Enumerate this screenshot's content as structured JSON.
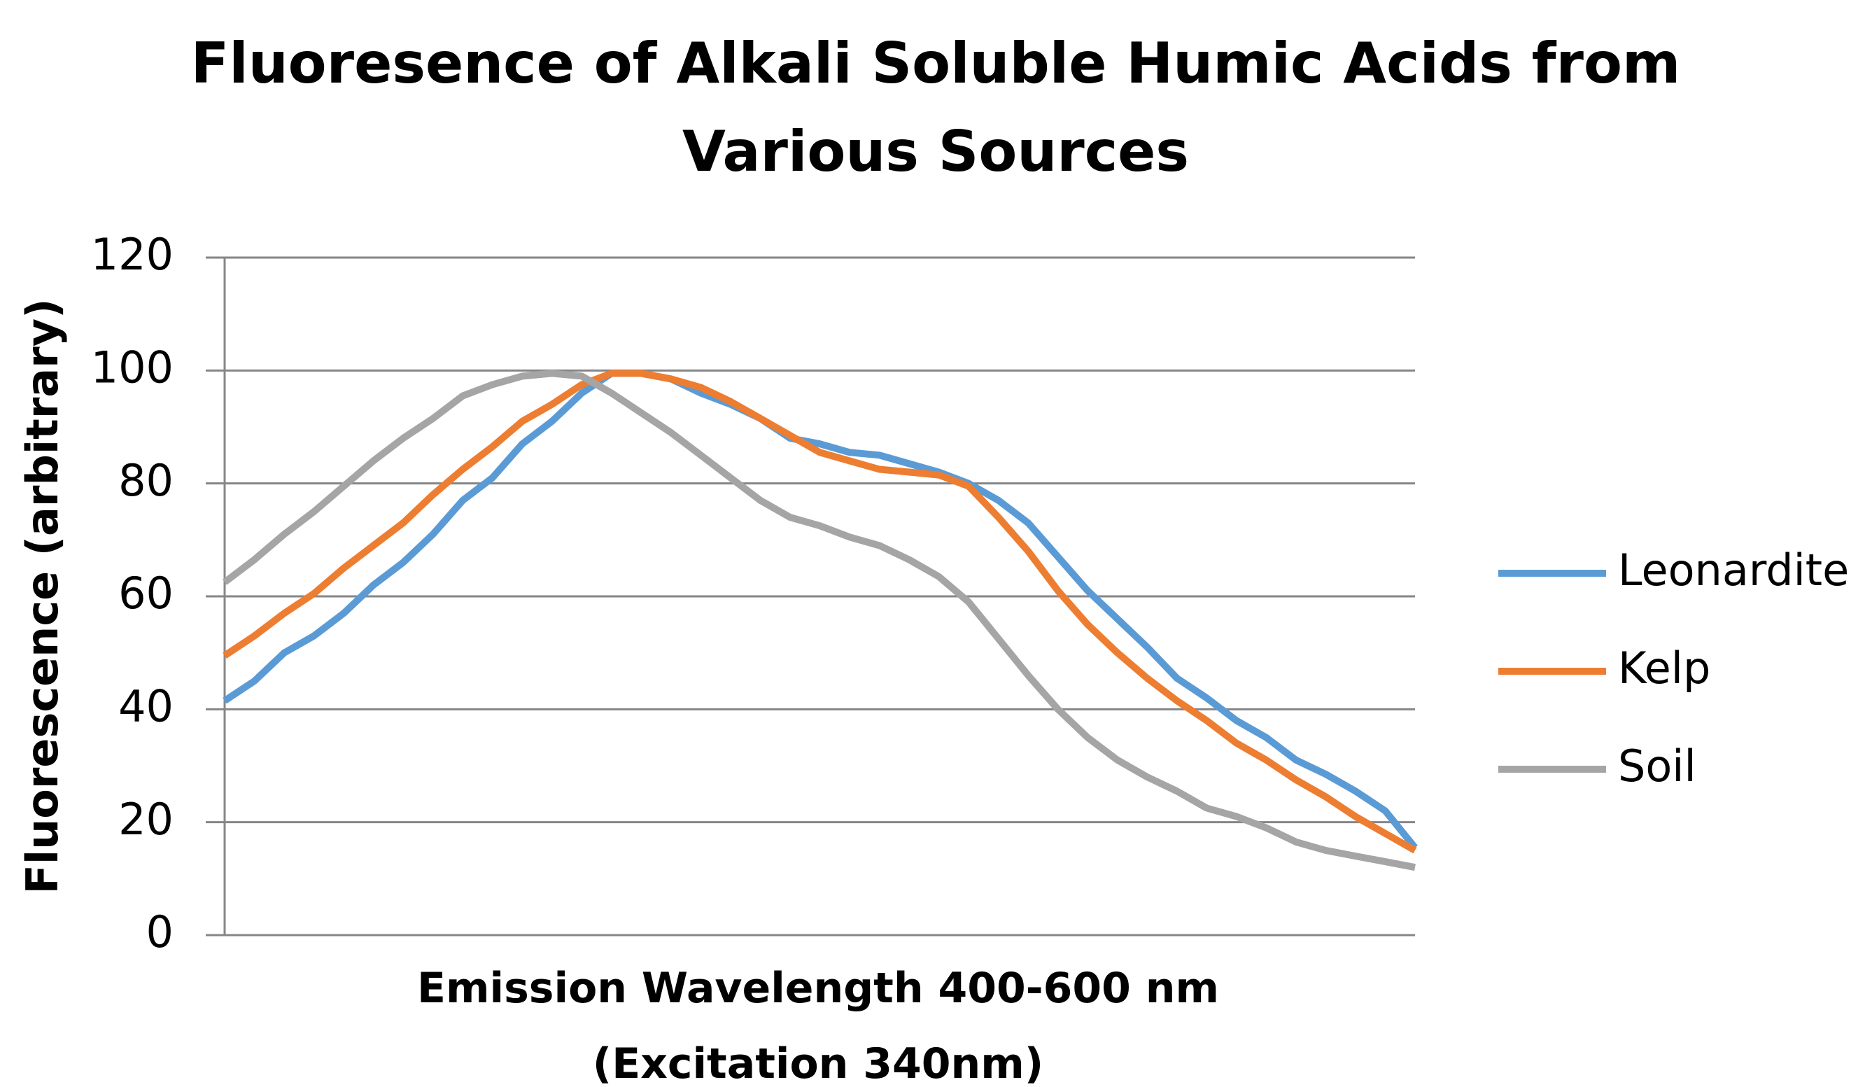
{
  "chart_data": {
    "type": "line",
    "title": "Fluoresence of Alkali Soluble Humic Acids from Various Sources",
    "x_label": "Emission Wavelength 400-600 nm (Excitation 340nm)",
    "y_label": "Fluorescence (arbitrary)",
    "categories": [
      null,
      null,
      null,
      null,
      null,
      null,
      null,
      null,
      null,
      null,
      null,
      null,
      null,
      null,
      null,
      null,
      null,
      null,
      null,
      null,
      null,
      null,
      null,
      null,
      null,
      null,
      null,
      null,
      null,
      null,
      null,
      null,
      null,
      null,
      null,
      null,
      null,
      null,
      null,
      null,
      null
    ],
    "series": [
      {
        "name": "Leonardite",
        "color": "#5b9bd5",
        "values": [
          41.5,
          45,
          50,
          53,
          57,
          62,
          66,
          71,
          77,
          81,
          87,
          91,
          96,
          99.5,
          99.5,
          98.5,
          96,
          94,
          91.5,
          88,
          87,
          85.5,
          85,
          83.5,
          82,
          80,
          77,
          73,
          67,
          61,
          56,
          51,
          45.5,
          42,
          38,
          35,
          31,
          28.5,
          25.5,
          22,
          15.5
        ]
      },
      {
        "name": "Kelp",
        "color": "#ed7d31",
        "values": [
          49.5,
          53,
          57,
          60.5,
          65,
          69,
          73,
          78,
          82.5,
          86.5,
          91,
          94,
          97.5,
          99.5,
          99.5,
          98.5,
          97,
          94.5,
          91.5,
          88.5,
          85.5,
          84,
          82.5,
          82,
          81.5,
          79.5,
          74,
          68,
          61,
          55,
          50,
          45.5,
          41.5,
          38,
          34,
          31,
          27.5,
          24.5,
          21,
          18,
          15
        ]
      },
      {
        "name": "Soil",
        "color": "#a5a5a5",
        "values": [
          62.5,
          66.5,
          71,
          75,
          79.5,
          84,
          88,
          91.5,
          95.5,
          97.5,
          99,
          99.5,
          99,
          96,
          92.5,
          89,
          85,
          81,
          77,
          74,
          72.5,
          70.5,
          69,
          66.5,
          63.5,
          59,
          52.5,
          46,
          40,
          35,
          31,
          28,
          25.5,
          22.5,
          21,
          19,
          16.5,
          15,
          14,
          13,
          12
        ]
      }
    ],
    "ylim": [
      0,
      120
    ],
    "yticks": [
      0,
      20,
      40,
      60,
      80,
      100,
      120
    ],
    "grid": true,
    "legend": "right"
  }
}
